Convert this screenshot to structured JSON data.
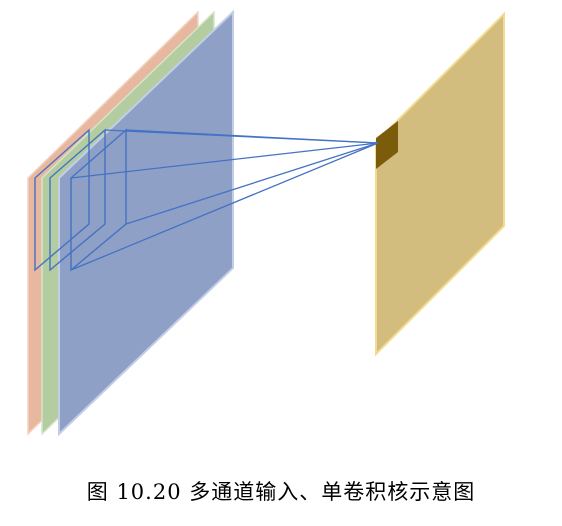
{
  "caption": "图 10.20 多通道输入、单卷积核示意图",
  "colors": {
    "channel_red": "#E8B79F",
    "channel_green": "#B3CDA1",
    "channel_blue": "#8FA0C6",
    "kernel_outline": "#4472C4",
    "output_map": "#D2BC7E",
    "output_map_edge": "#F2DA8E",
    "output_cell": "#7A5C0A"
  }
}
